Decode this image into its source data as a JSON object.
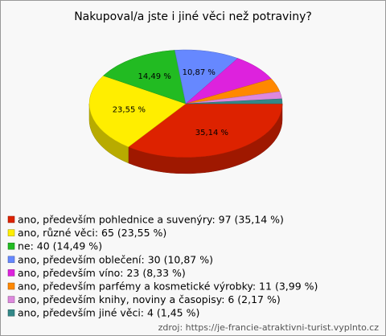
{
  "chart_data": {
    "type": "pie",
    "title": "Nakupoval/a jste i jiné věci než potraviny?",
    "categories": [
      "ano, především pohlednice a suvenýry: 97 (35,14 %)",
      "ano, různé věci: 65 (23,55 %)",
      "ne: 40 (14,49 %)",
      "ano, především oblečení: 30 (10,87 %)",
      "ano, především víno: 23 (8,33 %)",
      "ano, především parfémy a kosmetické výrobky: 11 (3,99 %)",
      "ano, především knihy, noviny a časopisy: 6 (2,17 %)",
      "ano, především jiné věci: 4 (1,45 %)"
    ],
    "values": [
      35.14,
      23.55,
      14.49,
      10.87,
      8.33,
      3.99,
      2.17,
      1.45
    ],
    "value_labels": [
      "35,14 %",
      "23,55 %",
      "14,49 %",
      "10,87 %",
      null,
      null,
      null,
      null
    ],
    "colors": [
      "#dd2200",
      "#ffee00",
      "#22bb22",
      "#6688ff",
      "#dd22dd",
      "#ff8800",
      "#dd88dd",
      "#338888"
    ],
    "source": "zdroj: https://je-francie-atraktivni-turist.vyplnto.cz"
  }
}
